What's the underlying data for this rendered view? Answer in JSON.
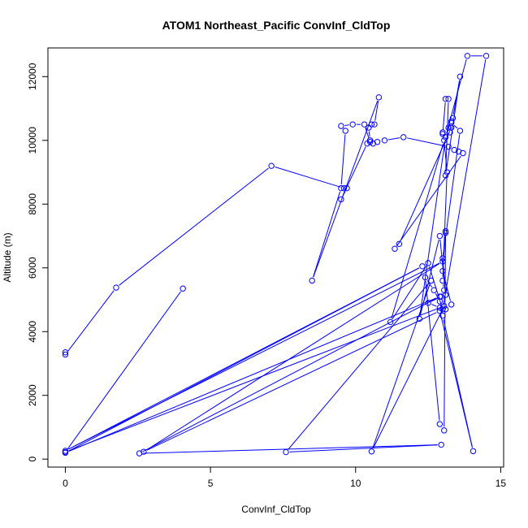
{
  "chart_data": {
    "type": "line",
    "title": "ATOM1 Northeast_Pacific ConvInf_CldTop",
    "xlabel": "ConvInf_CldTop",
    "ylabel": "Altitude (m)",
    "xlim": [
      -0.6,
      15.1
    ],
    "ylim": [
      -250,
      12900
    ],
    "xticks": [
      0,
      5,
      10,
      15
    ],
    "yticks": [
      0,
      2000,
      4000,
      6000,
      8000,
      10000,
      12000
    ],
    "grid": false,
    "legend": "none",
    "color": "#0000ff",
    "marker": "open-circle",
    "series": [
      {
        "points": [
          [
            0,
            3350
          ],
          [
            0,
            3280
          ],
          [
            1.75,
            5380
          ],
          [
            7.1,
            9200
          ],
          [
            9.6,
            8500
          ],
          [
            9.7,
            8500
          ],
          [
            9.5,
            8150
          ],
          [
            10.4,
            9900
          ],
          [
            10.5,
            10000
          ],
          [
            10.45,
            10400
          ],
          [
            10.55,
            10500
          ],
          [
            10.65,
            10500
          ],
          [
            10.8,
            11350
          ],
          [
            8.5,
            5600
          ],
          [
            9.5,
            8500
          ],
          [
            9.65,
            10300
          ],
          [
            9.5,
            10450
          ],
          [
            9.9,
            10500
          ],
          [
            10.3,
            10500
          ],
          [
            10.5,
            9950
          ],
          [
            10.6,
            9900
          ],
          [
            10.75,
            9950
          ],
          [
            11.0,
            10000
          ],
          [
            11.65,
            10100
          ],
          [
            13.2,
            9800
          ],
          [
            13.4,
            9700
          ],
          [
            13.55,
            9650
          ],
          [
            13.7,
            9600
          ],
          [
            11.35,
            6600
          ],
          [
            11.5,
            6750
          ],
          [
            13.3,
            10400
          ],
          [
            13.25,
            10250
          ],
          [
            13.3,
            10600
          ],
          [
            13.35,
            10700
          ],
          [
            13.6,
            12000
          ],
          [
            13.1,
            8900
          ],
          [
            13.2,
            11300
          ],
          [
            13.1,
            11300
          ],
          [
            13.0,
            10200
          ],
          [
            13.0,
            10250
          ],
          [
            13.2,
            10400
          ],
          [
            13.3,
            10550
          ],
          [
            13.6,
            10300
          ],
          [
            13.0,
            6300
          ],
          [
            13.1,
            5150
          ],
          [
            12.9,
            7000
          ],
          [
            12.2,
            4400
          ],
          [
            13.1,
            10100
          ],
          [
            13.85,
            12650
          ],
          [
            14.5,
            12650
          ],
          [
            13.0,
            4700
          ],
          [
            12.5,
            6150
          ],
          [
            11.2,
            4300
          ],
          [
            13.05,
            10000
          ],
          [
            13.15,
            9000
          ],
          [
            13.0,
            5600
          ],
          [
            13.05,
            5300
          ],
          [
            12.95,
            5100
          ],
          [
            12.5,
            4900
          ],
          [
            12.9,
            4750
          ],
          [
            13.1,
            4700
          ],
          [
            13.3,
            4850
          ],
          [
            13.0,
            5900
          ],
          [
            13.1,
            7100
          ],
          [
            13.1,
            7150
          ],
          [
            13.05,
            900
          ],
          [
            12.9,
            1100
          ],
          [
            12.4,
            5700
          ],
          [
            12.7,
            5300
          ],
          [
            12.9,
            4950
          ],
          [
            13.0,
            4500
          ],
          [
            14.05,
            250
          ],
          [
            12.9,
            4650
          ],
          [
            2.7,
            230
          ],
          [
            13.0,
            6200
          ],
          [
            0,
            260
          ],
          [
            12.3,
            6050
          ],
          [
            0,
            200
          ],
          [
            12.9,
            5100
          ],
          [
            2.55,
            180
          ],
          [
            12.95,
            450
          ],
          [
            7.6,
            220
          ],
          [
            12.6,
            5600
          ],
          [
            10.55,
            240
          ],
          [
            13.05,
            4800
          ],
          [
            0,
            220
          ],
          [
            4.05,
            5350
          ]
        ]
      }
    ]
  }
}
